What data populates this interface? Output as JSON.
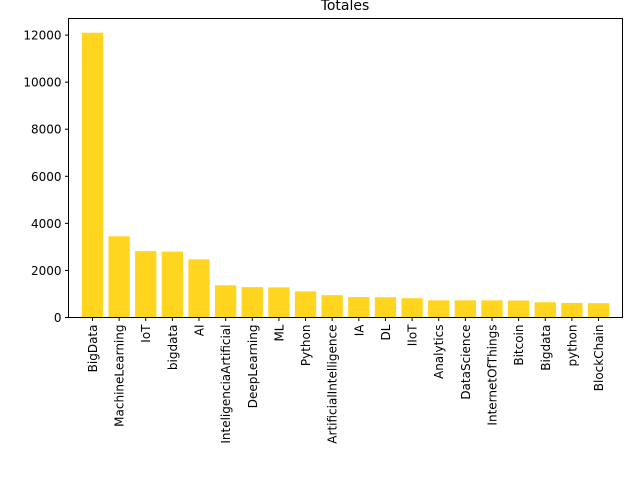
{
  "chart_data": {
    "type": "bar",
    "title": "Totales",
    "xlabel": "",
    "ylabel": "",
    "categories": [
      "BigData",
      "MachineLearning",
      "IoT",
      "bigdata",
      "AI",
      "InteligenciaArtificial",
      "DeepLearning",
      "ML",
      "Python",
      "ArtificialIntelligence",
      "IA",
      "DL",
      "IIoT",
      "Analytics",
      "DataScience",
      "InternetOfThings",
      "Bitcoin",
      "Bigdata",
      "python",
      "BlockChain"
    ],
    "values": [
      12100,
      3450,
      2820,
      2800,
      2470,
      1370,
      1290,
      1280,
      1110,
      950,
      870,
      860,
      820,
      730,
      730,
      730,
      720,
      650,
      620,
      610
    ],
    "ylim": [
      0,
      12705
    ],
    "yticks": [
      0,
      2000,
      4000,
      6000,
      8000,
      10000,
      12000
    ],
    "ytick_labels": [
      "0",
      "2000",
      "4000",
      "6000",
      "8000",
      "10000",
      "12000"
    ],
    "bar_color": "#ffd520",
    "grid": false,
    "legend": false
  }
}
